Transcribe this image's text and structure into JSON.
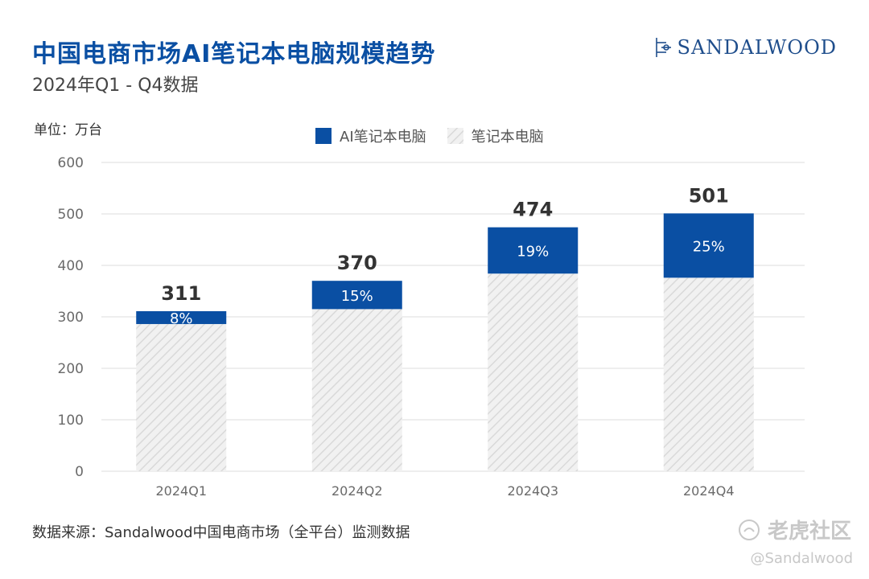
{
  "header": {
    "title": "中国电商市场AI笔记本电脑规模趋势",
    "subtitle": "2024年Q1 - Q4数据",
    "brand": "SANDALWOOD"
  },
  "unit_label": "单位：万台",
  "footer": {
    "source": "数据来源：Sandalwood中国电商市场（全平台）监测数据",
    "watermark": "老虎社区",
    "watermark_handle": "@Sandalwood"
  },
  "colors": {
    "ai": "#0a4fa3",
    "total_hatch_bg": "#f1f1f1",
    "total_hatch_line": "#d9d9d9",
    "grid": "#dcdcdc",
    "axis_text": "#6a6a6a"
  },
  "chart_data": {
    "type": "bar",
    "stacked": true,
    "categories": [
      "2024Q1",
      "2024Q2",
      "2024Q3",
      "2024Q4"
    ],
    "totals": [
      311,
      370,
      474,
      501
    ],
    "ai_share_labels": [
      "8%",
      "15%",
      "19%",
      "25%"
    ],
    "series": [
      {
        "name": "AI笔记本电脑",
        "values": [
          25,
          55,
          90,
          125
        ]
      },
      {
        "name": "笔记本电脑",
        "values": [
          286,
          315,
          384,
          376
        ]
      }
    ],
    "ylim": [
      0,
      600
    ],
    "yticks": [
      0,
      100,
      200,
      300,
      400,
      500,
      600
    ],
    "grid": true,
    "legend": "top-center"
  }
}
